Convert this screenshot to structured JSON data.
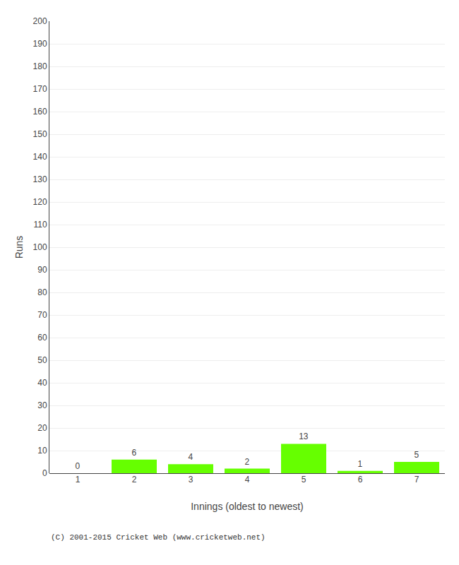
{
  "chart_data": {
    "type": "bar",
    "categories": [
      1,
      2,
      3,
      4,
      5,
      6,
      7
    ],
    "values": [
      0,
      6,
      4,
      2,
      13,
      1,
      5
    ],
    "color": "#66ff00",
    "xlabel": "Innings (oldest to newest)",
    "ylabel": "Runs",
    "ylim": [
      0,
      200
    ],
    "yticks": [
      0,
      10,
      20,
      30,
      40,
      50,
      60,
      70,
      80,
      90,
      100,
      110,
      120,
      130,
      140,
      150,
      160,
      170,
      180,
      190,
      200
    ],
    "grid": true,
    "data_labels": true,
    "annotations": [
      "(C) 2001-2015 Cricket Web (www.cricketweb.net)"
    ]
  }
}
